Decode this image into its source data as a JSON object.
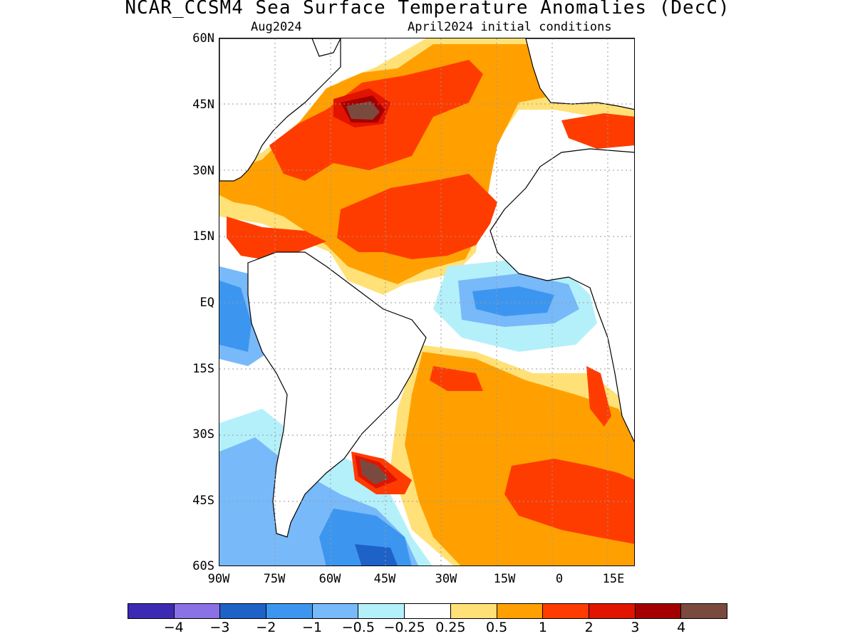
{
  "title": "NCAR_CCSM4 Sea Surface Temperature Anomalies (DecC)",
  "subtitle_left": "Aug2024",
  "subtitle_right": "April2024 initial conditions",
  "axes": {
    "lat_labels": [
      "60N",
      "45N",
      "30N",
      "15N",
      "EQ",
      "15S",
      "30S",
      "45S",
      "60S"
    ],
    "lon_labels": [
      "90W",
      "75W",
      "60W",
      "45W",
      "30W",
      "15W",
      "0",
      "15E"
    ]
  },
  "legend": {
    "colors": [
      "#3c2ab4",
      "#8a71e6",
      "#1e62c8",
      "#3c96f0",
      "#78b9fa",
      "#b4f0fa",
      "#ffffff",
      "#ffe178",
      "#ffa000",
      "#ff3c00",
      "#e11400",
      "#a50000",
      "#7a4a3f"
    ],
    "labels": [
      "−4",
      "−3",
      "−2",
      "−1",
      "−0.5",
      "−0.25",
      "0.25",
      "0.5",
      "1",
      "2",
      "3",
      "4"
    ]
  },
  "colors": {
    "land": "#ffffff",
    "coast": "#000000",
    "grid": "#9a9a9a"
  }
}
